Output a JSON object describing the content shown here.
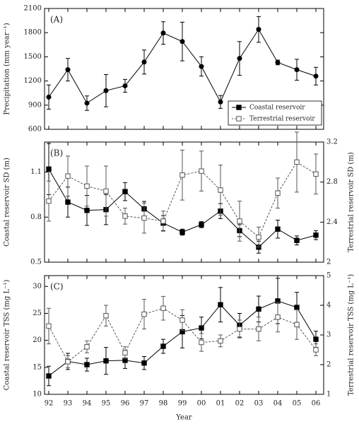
{
  "chart_data": [
    {
      "type": "line",
      "label": "(A)",
      "ylabel": "Precipitation (mm year⁻¹)",
      "ylim": [
        600,
        2100
      ],
      "yticks": [
        600,
        900,
        1200,
        1500,
        1800,
        2100
      ],
      "color": "#000000",
      "marker": "circle",
      "values": [
        1000,
        1340,
        925,
        1080,
        1140,
        1435,
        1795,
        1690,
        1380,
        940,
        1480,
        1840,
        1430,
        1340,
        1260
      ],
      "errors": [
        150,
        140,
        90,
        200,
        80,
        150,
        140,
        240,
        120,
        80,
        210,
        160,
        30,
        130,
        110
      ],
      "legend": "lower right"
    },
    {
      "type": "line",
      "label": "(B)",
      "ylabel": "Coastal reservoir SD (m)",
      "y2label": "Terrestrial reservoir SD (m)",
      "ylim": [
        0.5,
        1.3
      ],
      "yticks": [
        0.5,
        0.8,
        1.1
      ],
      "y2lim": [
        2,
        3.2
      ],
      "y2ticks": [
        2,
        2.4,
        2.8,
        3.2
      ],
      "series": [
        {
          "name": "Coastal reservoir",
          "color": "#000000",
          "marker": "square-filled",
          "linestyle": "solid",
          "values": [
            1.12,
            0.9,
            0.845,
            0.85,
            0.97,
            0.855,
            0.76,
            0.7,
            0.75,
            0.84,
            0.71,
            0.6,
            0.72,
            0.645,
            0.68
          ],
          "errors": [
            0.17,
            0.1,
            0.1,
            0.1,
            0.06,
            0.05,
            0.05,
            0.02,
            0.02,
            0.05,
            0.04,
            0.04,
            0.06,
            0.03,
            0.03
          ]
        },
        {
          "name": "Terrestrial reservoir",
          "color": "#555555",
          "marker": "square-open",
          "linestyle": "dashed",
          "axis": "y2",
          "values": [
            2.61,
            2.86,
            2.76,
            2.71,
            2.46,
            2.44,
            2.41,
            2.87,
            2.91,
            2.72,
            2.41,
            2.25,
            2.69,
            3.0,
            2.88
          ],
          "errors": [
            0.2,
            0.2,
            0.2,
            0.25,
            0.08,
            0.15,
            0.1,
            0.25,
            0.2,
            0.25,
            0.2,
            0.1,
            0.15,
            0.3,
            0.2
          ]
        }
      ]
    },
    {
      "type": "line",
      "label": "(C)",
      "ylabel": "Coastal reservoir TSS (mg L⁻¹)",
      "y2label": "Terrestrial reservoir TSS (mg L⁻¹)",
      "xlabel": "Year",
      "categories": [
        "92",
        "93",
        "94",
        "95",
        "96",
        "97",
        "98",
        "99",
        "00",
        "01",
        "02",
        "03",
        "04",
        "05",
        "06"
      ],
      "ylim": [
        10,
        32
      ],
      "yticks": [
        10,
        15,
        20,
        25,
        30
      ],
      "y2lim": [
        1,
        5
      ],
      "y2ticks": [
        1,
        2,
        3,
        4,
        5
      ],
      "series": [
        {
          "name": "Coastal reservoir",
          "color": "#000000",
          "marker": "square-filled",
          "linestyle": "solid",
          "values": [
            13.4,
            16.1,
            15.5,
            16.2,
            16.3,
            15.8,
            18.9,
            21.6,
            22.3,
            26.6,
            22.8,
            25.8,
            27.3,
            26.1,
            20.2
          ],
          "errors": [
            1.8,
            1.5,
            1.2,
            2.5,
            1.5,
            1.2,
            1.3,
            3.0,
            2.0,
            3.2,
            2.2,
            2.4,
            4.2,
            2.8,
            1.5
          ]
        },
        {
          "name": "Terrestrial reservoir",
          "color": "#555555",
          "marker": "square-open",
          "linestyle": "dashed",
          "axis": "y2",
          "values": [
            3.3,
            2.1,
            2.6,
            3.65,
            2.4,
            3.7,
            3.9,
            3.5,
            2.75,
            2.8,
            3.2,
            3.2,
            3.6,
            3.35,
            2.5
          ],
          "errors": [
            0.6,
            0.2,
            0.2,
            0.35,
            0.2,
            0.5,
            0.4,
            0.35,
            0.3,
            0.2,
            0.3,
            0.4,
            0.5,
            0.5,
            0.2
          ]
        }
      ]
    }
  ]
}
